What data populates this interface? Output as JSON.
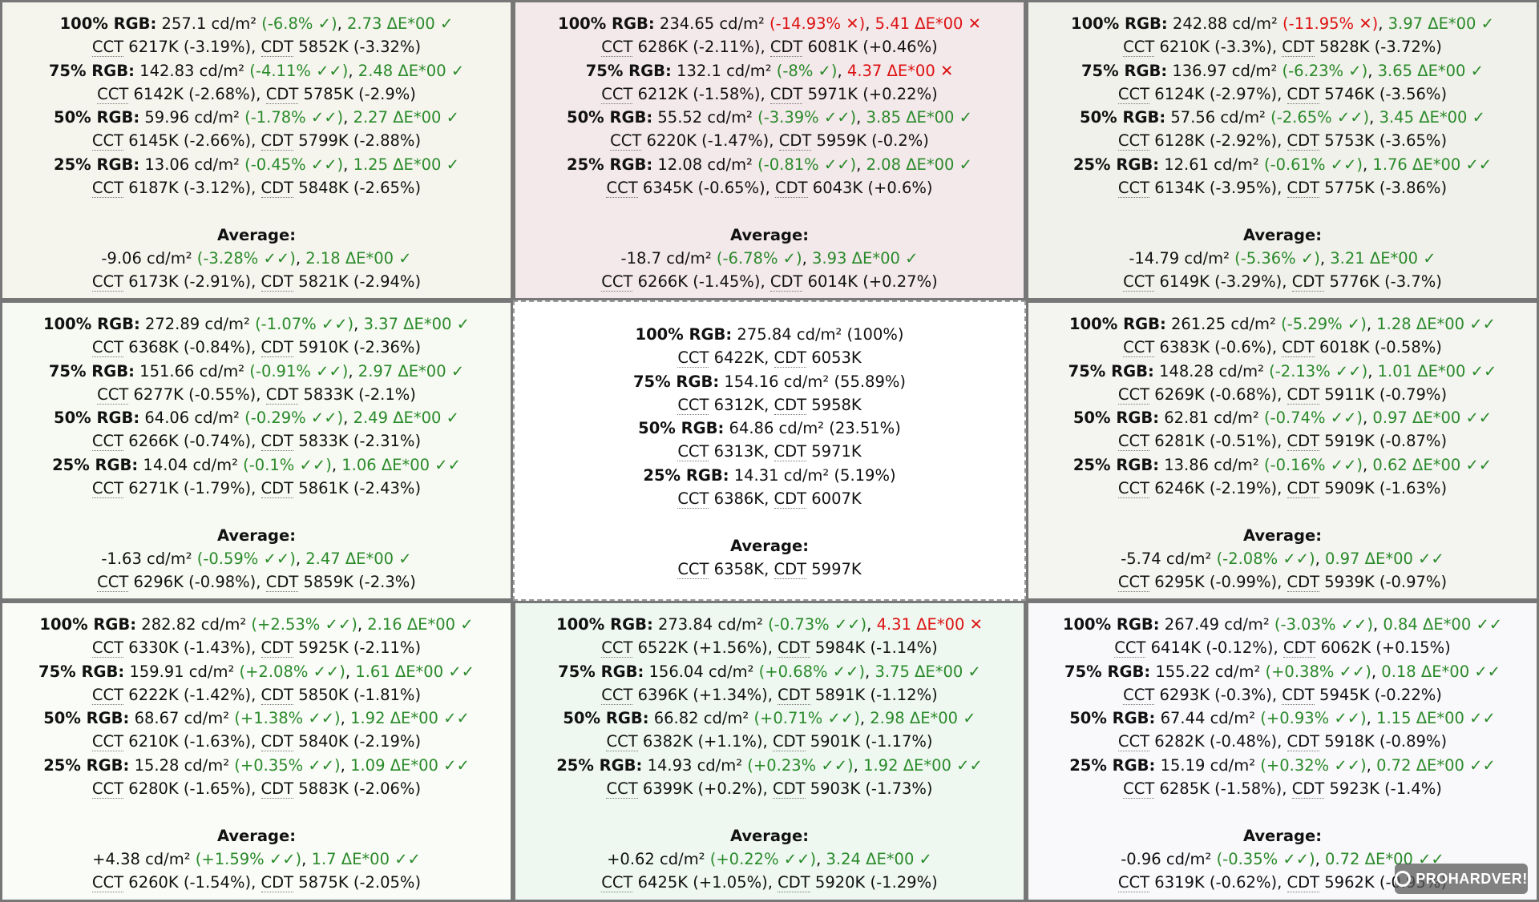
{
  "cells": [
    {
      "bg": "#f5f5ee",
      "rows": [
        {
          "label": "100% RGB:",
          "lum": "257.1 cd/m²",
          "pct": "(-6.8% ✓)",
          "pct_status": "ok",
          "de": "2.73 ΔE*00 ✓",
          "de_status": "ok",
          "cct": "6217K (-3.19%)",
          "cdt": "5852K (-3.32%)"
        },
        {
          "label": "75% RGB:",
          "lum": "142.83 cd/m²",
          "pct": "(-4.11% ✓✓)",
          "pct_status": "ok",
          "de": "2.48 ΔE*00 ✓",
          "de_status": "ok",
          "cct": "6142K (-2.68%)",
          "cdt": "5785K (-2.9%)"
        },
        {
          "label": "50% RGB:",
          "lum": "59.96 cd/m²",
          "pct": "(-1.78% ✓✓)",
          "pct_status": "ok",
          "de": "2.27 ΔE*00 ✓",
          "de_status": "ok",
          "cct": "6145K (-2.66%)",
          "cdt": "5799K (-2.88%)"
        },
        {
          "label": "25% RGB:",
          "lum": "13.06 cd/m²",
          "pct": "(-0.45% ✓✓)",
          "pct_status": "ok",
          "de": "1.25 ΔE*00 ✓",
          "de_status": "ok",
          "cct": "6187K (-3.12%)",
          "cdt": "5848K (-2.65%)"
        }
      ],
      "avg": {
        "lum": "-9.06 cd/m²",
        "pct": "(-3.28% ✓✓)",
        "pct_status": "ok",
        "de": "2.18 ΔE*00 ✓",
        "de_status": "ok",
        "cct": "6173K (-2.91%)",
        "cdt": "5821K (-2.94%)"
      }
    },
    {
      "bg": "#f3e8ea",
      "rows": [
        {
          "label": "100% RGB:",
          "lum": "234.65 cd/m²",
          "pct": "(-14.93% ✕)",
          "pct_status": "bad",
          "de": "5.41 ΔE*00 ✕",
          "de_status": "bad",
          "cct": "6286K (-2.11%)",
          "cdt": "6081K (+0.46%)"
        },
        {
          "label": "75% RGB:",
          "lum": "132.1 cd/m²",
          "pct": "(-8% ✓)",
          "pct_status": "ok",
          "de": "4.37 ΔE*00 ✕",
          "de_status": "bad",
          "cct": "6212K (-1.58%)",
          "cdt": "5971K (+0.22%)"
        },
        {
          "label": "50% RGB:",
          "lum": "55.52 cd/m²",
          "pct": "(-3.39% ✓✓)",
          "pct_status": "ok",
          "de": "3.85 ΔE*00 ✓",
          "de_status": "ok",
          "cct": "6220K (-1.47%)",
          "cdt": "5959K (-0.2%)"
        },
        {
          "label": "25% RGB:",
          "lum": "12.08 cd/m²",
          "pct": "(-0.81% ✓✓)",
          "pct_status": "ok",
          "de": "2.08 ΔE*00 ✓",
          "de_status": "ok",
          "cct": "6345K (-0.65%)",
          "cdt": "6043K (+0.6%)"
        }
      ],
      "avg": {
        "lum": "-18.7 cd/m²",
        "pct": "(-6.78% ✓)",
        "pct_status": "ok",
        "de": "3.93 ΔE*00 ✓",
        "de_status": "ok",
        "cct": "6266K (-1.45%)",
        "cdt": "6014K (+0.27%)"
      }
    },
    {
      "bg": "#f0f1ea",
      "rows": [
        {
          "label": "100% RGB:",
          "lum": "242.88 cd/m²",
          "pct": "(-11.95% ✕)",
          "pct_status": "bad",
          "de": "3.97 ΔE*00 ✓",
          "de_status": "ok",
          "cct": "6210K (-3.3%)",
          "cdt": "5828K (-3.72%)"
        },
        {
          "label": "75% RGB:",
          "lum": "136.97 cd/m²",
          "pct": "(-6.23% ✓)",
          "pct_status": "ok",
          "de": "3.65 ΔE*00 ✓",
          "de_status": "ok",
          "cct": "6124K (-2.97%)",
          "cdt": "5746K (-3.56%)"
        },
        {
          "label": "50% RGB:",
          "lum": "57.56 cd/m²",
          "pct": "(-2.65% ✓✓)",
          "pct_status": "ok",
          "de": "3.45 ΔE*00 ✓",
          "de_status": "ok",
          "cct": "6128K (-2.92%)",
          "cdt": "5753K (-3.65%)"
        },
        {
          "label": "25% RGB:",
          "lum": "12.61 cd/m²",
          "pct": "(-0.61% ✓✓)",
          "pct_status": "ok",
          "de": "1.76 ΔE*00 ✓✓",
          "de_status": "ok",
          "cct": "6134K (-3.95%)",
          "cdt": "5775K (-3.86%)"
        }
      ],
      "avg": {
        "lum": "-14.79 cd/m²",
        "pct": "(-5.36% ✓)",
        "pct_status": "ok",
        "de": "3.21 ΔE*00 ✓",
        "de_status": "ok",
        "cct": "6149K (-3.29%)",
        "cdt": "5776K (-3.7%)"
      }
    },
    {
      "bg": "#f6faf2",
      "rows": [
        {
          "label": "100% RGB:",
          "lum": "272.89 cd/m²",
          "pct": "(-1.07% ✓✓)",
          "pct_status": "ok",
          "de": "3.37 ΔE*00 ✓",
          "de_status": "ok",
          "cct": "6368K (-0.84%)",
          "cdt": "5910K (-2.36%)"
        },
        {
          "label": "75% RGB:",
          "lum": "151.66 cd/m²",
          "pct": "(-0.91% ✓✓)",
          "pct_status": "ok",
          "de": "2.97 ΔE*00 ✓",
          "de_status": "ok",
          "cct": "6277K (-0.55%)",
          "cdt": "5833K (-2.1%)"
        },
        {
          "label": "50% RGB:",
          "lum": "64.06 cd/m²",
          "pct": "(-0.29% ✓✓)",
          "pct_status": "ok",
          "de": "2.49 ΔE*00 ✓",
          "de_status": "ok",
          "cct": "6266K (-0.74%)",
          "cdt": "5833K (-2.31%)"
        },
        {
          "label": "25% RGB:",
          "lum": "14.04 cd/m²",
          "pct": "(-0.1% ✓✓)",
          "pct_status": "ok",
          "de": "1.06 ΔE*00 ✓✓",
          "de_status": "ok",
          "cct": "6271K (-1.79%)",
          "cdt": "5861K (-2.43%)"
        }
      ],
      "avg": {
        "lum": "-1.63 cd/m²",
        "pct": "(-0.59% ✓✓)",
        "pct_status": "ok",
        "de": "2.47 ΔE*00 ✓",
        "de_status": "ok",
        "cct": "6296K (-0.98%)",
        "cdt": "5859K (-2.3%)"
      }
    },
    {
      "ref": true,
      "bg": "#ffffff",
      "rows": [
        {
          "label": "100% RGB:",
          "lum": "275.84 cd/m² (100%)",
          "cct": "6422K",
          "cdt": "6053K"
        },
        {
          "label": "75% RGB:",
          "lum": "154.16 cd/m² (55.89%)",
          "cct": "6312K",
          "cdt": "5958K"
        },
        {
          "label": "50% RGB:",
          "lum": "64.86 cd/m² (23.51%)",
          "cct": "6313K",
          "cdt": "5971K"
        },
        {
          "label": "25% RGB:",
          "lum": "14.31 cd/m² (5.19%)",
          "cct": "6386K",
          "cdt": "6007K"
        }
      ],
      "avg": {
        "cct": "6358K",
        "cdt": "5997K"
      }
    },
    {
      "bg": "#f4f4f1",
      "rows": [
        {
          "label": "100% RGB:",
          "lum": "261.25 cd/m²",
          "pct": "(-5.29% ✓)",
          "pct_status": "ok",
          "de": "1.28 ΔE*00 ✓✓",
          "de_status": "ok",
          "cct": "6383K (-0.6%)",
          "cdt": "6018K (-0.58%)"
        },
        {
          "label": "75% RGB:",
          "lum": "148.28 cd/m²",
          "pct": "(-2.13% ✓✓)",
          "pct_status": "ok",
          "de": "1.01 ΔE*00 ✓✓",
          "de_status": "ok",
          "cct": "6269K (-0.68%)",
          "cdt": "5911K (-0.79%)"
        },
        {
          "label": "50% RGB:",
          "lum": "62.81 cd/m²",
          "pct": "(-0.74% ✓✓)",
          "pct_status": "ok",
          "de": "0.97 ΔE*00 ✓✓",
          "de_status": "ok",
          "cct": "6281K (-0.51%)",
          "cdt": "5919K (-0.87%)"
        },
        {
          "label": "25% RGB:",
          "lum": "13.86 cd/m²",
          "pct": "(-0.16% ✓✓)",
          "pct_status": "ok",
          "de": "0.62 ΔE*00 ✓✓",
          "de_status": "ok",
          "cct": "6246K (-2.19%)",
          "cdt": "5909K (-1.63%)"
        }
      ],
      "avg": {
        "lum": "-5.74 cd/m²",
        "pct": "(-2.08% ✓✓)",
        "pct_status": "ok",
        "de": "0.97 ΔE*00 ✓✓",
        "de_status": "ok",
        "cct": "6295K (-0.99%)",
        "cdt": "5939K (-0.97%)"
      }
    },
    {
      "bg": "#fafcf7",
      "rows": [
        {
          "label": "100% RGB:",
          "lum": "282.82 cd/m²",
          "pct": "(+2.53% ✓✓)",
          "pct_status": "ok",
          "de": "2.16 ΔE*00 ✓",
          "de_status": "ok",
          "cct": "6330K (-1.43%)",
          "cdt": "5925K (-2.11%)"
        },
        {
          "label": "75% RGB:",
          "lum": "159.91 cd/m²",
          "pct": "(+2.08% ✓✓)",
          "pct_status": "ok",
          "de": "1.61 ΔE*00 ✓✓",
          "de_status": "ok",
          "cct": "6222K (-1.42%)",
          "cdt": "5850K (-1.81%)"
        },
        {
          "label": "50% RGB:",
          "lum": "68.67 cd/m²",
          "pct": "(+1.38% ✓✓)",
          "pct_status": "ok",
          "de": "1.92 ΔE*00 ✓✓",
          "de_status": "ok",
          "cct": "6210K (-1.63%)",
          "cdt": "5840K (-2.19%)"
        },
        {
          "label": "25% RGB:",
          "lum": "15.28 cd/m²",
          "pct": "(+0.35% ✓✓)",
          "pct_status": "ok",
          "de": "1.09 ΔE*00 ✓✓",
          "de_status": "ok",
          "cct": "6280K (-1.65%)",
          "cdt": "5883K (-2.06%)"
        }
      ],
      "avg": {
        "lum": "+4.38 cd/m²",
        "pct": "(+1.59% ✓✓)",
        "pct_status": "ok",
        "de": "1.7 ΔE*00 ✓✓",
        "de_status": "ok",
        "cct": "6260K (-1.54%)",
        "cdt": "5875K (-2.05%)"
      }
    },
    {
      "bg": "#eef8f1",
      "rows": [
        {
          "label": "100% RGB:",
          "lum": "273.84 cd/m²",
          "pct": "(-0.73% ✓✓)",
          "pct_status": "ok",
          "de": "4.31 ΔE*00 ✕",
          "de_status": "bad",
          "cct": "6522K (+1.56%)",
          "cdt": "5984K (-1.14%)"
        },
        {
          "label": "75% RGB:",
          "lum": "156.04 cd/m²",
          "pct": "(+0.68% ✓✓)",
          "pct_status": "ok",
          "de": "3.75 ΔE*00 ✓",
          "de_status": "ok",
          "cct": "6396K (+1.34%)",
          "cdt": "5891K (-1.12%)"
        },
        {
          "label": "50% RGB:",
          "lum": "66.82 cd/m²",
          "pct": "(+0.71% ✓✓)",
          "pct_status": "ok",
          "de": "2.98 ΔE*00 ✓",
          "de_status": "ok",
          "cct": "6382K (+1.1%)",
          "cdt": "5901K (-1.17%)"
        },
        {
          "label": "25% RGB:",
          "lum": "14.93 cd/m²",
          "pct": "(+0.23% ✓✓)",
          "pct_status": "ok",
          "de": "1.92 ΔE*00 ✓✓",
          "de_status": "ok",
          "cct": "6399K (+0.2%)",
          "cdt": "5903K (-1.73%)"
        }
      ],
      "avg": {
        "lum": "+0.62 cd/m²",
        "pct": "(+0.22% ✓✓)",
        "pct_status": "ok",
        "de": "3.24 ΔE*00 ✓",
        "de_status": "ok",
        "cct": "6425K (+1.05%)",
        "cdt": "5920K (-1.29%)"
      }
    },
    {
      "bg": "#f9f8fa",
      "rows": [
        {
          "label": "100% RGB:",
          "lum": "267.49 cd/m²",
          "pct": "(-3.03% ✓✓)",
          "pct_status": "ok",
          "de": "0.84 ΔE*00 ✓✓",
          "de_status": "ok",
          "cct": "6414K (-0.12%)",
          "cdt": "6062K (+0.15%)"
        },
        {
          "label": "75% RGB:",
          "lum": "155.22 cd/m²",
          "pct": "(+0.38% ✓✓)",
          "pct_status": "ok",
          "de": "0.18 ΔE*00 ✓✓",
          "de_status": "ok",
          "cct": "6293K (-0.3%)",
          "cdt": "5945K (-0.22%)"
        },
        {
          "label": "50% RGB:",
          "lum": "67.44 cd/m²",
          "pct": "(+0.93% ✓✓)",
          "pct_status": "ok",
          "de": "1.15 ΔE*00 ✓✓",
          "de_status": "ok",
          "cct": "6282K (-0.48%)",
          "cdt": "5918K (-0.89%)"
        },
        {
          "label": "25% RGB:",
          "lum": "15.19 cd/m²",
          "pct": "(+0.32% ✓✓)",
          "pct_status": "ok",
          "de": "0.72 ΔE*00 ✓✓",
          "de_status": "ok",
          "cct": "6285K (-1.58%)",
          "cdt": "5923K (-1.4%)"
        }
      ],
      "avg": {
        "lum": "-0.96 cd/m²",
        "pct": "(-0.35% ✓✓)",
        "pct_status": "ok",
        "de": "0.72 ΔE*00 ✓✓",
        "de_status": "ok",
        "cct": "6319K (-0.62%)",
        "cdt": "5962K (-0.95%)"
      }
    }
  ],
  "labels": {
    "average": "Average:",
    "cct": "CCT",
    "cdt": "CDT"
  },
  "colors": {
    "ok": "#2a8a2a",
    "bad": "#dd1111"
  },
  "watermark": {
    "text": "PROHARDVER!",
    "icon": "prohardver-logo-icon"
  }
}
